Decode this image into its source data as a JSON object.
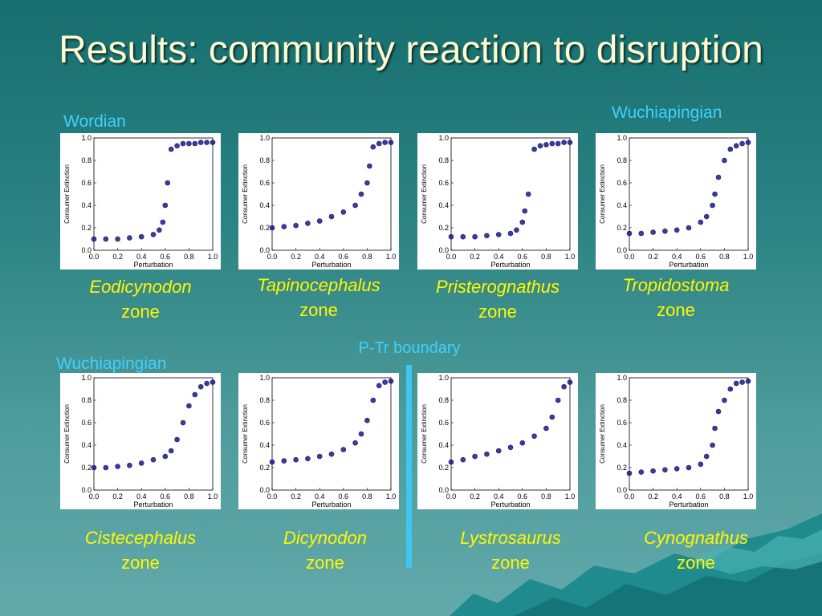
{
  "title": "Results: community reaction to disruption",
  "period_labels": {
    "top_left": "Wordian",
    "top_right": "Wuchiapingian",
    "bottom_left": "Wuchiapingian"
  },
  "boundary_label": "P-Tr boundary",
  "colors": {
    "background": "#2b8282",
    "title": "#fffbd0",
    "period_label": "#3fd0ff",
    "caption": "#fff700",
    "boundary_line": "#3fc6f2",
    "marker": "#1a1a80"
  },
  "captions": [
    {
      "genus": "Eodicynodon",
      "zone": "zone"
    },
    {
      "genus": "Tapinocephalus",
      "zone": "zone"
    },
    {
      "genus": "Pristerognathus",
      "zone": "zone"
    },
    {
      "genus": "Tropidostoma",
      "zone": "zone"
    },
    {
      "genus": "Cistecephalus",
      "zone": "zone"
    },
    {
      "genus": "Dicynodon",
      "zone": "zone"
    },
    {
      "genus": "Lystrosaurus",
      "zone": "zone"
    },
    {
      "genus": "Cynognathus",
      "zone": "zone"
    }
  ],
  "chart_data": [
    {
      "type": "scatter",
      "xlabel": "Perturbation",
      "ylabel": "Consumer Extinction",
      "xlim": [
        0,
        1
      ],
      "ylim": [
        0,
        1
      ],
      "x_ticks": [
        "0.0",
        "0.2",
        "0.4",
        "0.6",
        "0.8",
        "1.0"
      ],
      "y_ticks": [
        "0.0",
        "0.2",
        "0.4",
        "0.6",
        "0.8",
        "1.0"
      ],
      "x": [
        0.0,
        0.1,
        0.2,
        0.3,
        0.4,
        0.5,
        0.55,
        0.58,
        0.6,
        0.62,
        0.65,
        0.7,
        0.75,
        0.8,
        0.85,
        0.9,
        0.95,
        1.0
      ],
      "y": [
        0.1,
        0.1,
        0.1,
        0.11,
        0.12,
        0.14,
        0.18,
        0.25,
        0.4,
        0.6,
        0.9,
        0.93,
        0.95,
        0.95,
        0.95,
        0.96,
        0.96,
        0.96
      ]
    },
    {
      "type": "scatter",
      "xlabel": "Perturbation",
      "ylabel": "Consumer Extinction",
      "xlim": [
        0,
        1
      ],
      "ylim": [
        0,
        1
      ],
      "x_ticks": [
        "0.0",
        "0.2",
        "0.4",
        "0.6",
        "0.8",
        "1.0"
      ],
      "y_ticks": [
        "0.0",
        "0.2",
        "0.4",
        "0.6",
        "0.8",
        "1.0"
      ],
      "x": [
        0.0,
        0.1,
        0.2,
        0.3,
        0.4,
        0.5,
        0.6,
        0.7,
        0.75,
        0.8,
        0.82,
        0.85,
        0.9,
        0.95,
        1.0
      ],
      "y": [
        0.2,
        0.21,
        0.22,
        0.24,
        0.26,
        0.3,
        0.34,
        0.4,
        0.5,
        0.6,
        0.75,
        0.92,
        0.95,
        0.96,
        0.96
      ]
    },
    {
      "type": "scatter",
      "xlabel": "Perturbation",
      "ylabel": "Consumer Extinction",
      "xlim": [
        0,
        1
      ],
      "ylim": [
        0,
        1
      ],
      "x_ticks": [
        "0.0",
        "0.2",
        "0.4",
        "0.6",
        "0.8",
        "1.0"
      ],
      "y_ticks": [
        "0.0",
        "0.2",
        "0.4",
        "0.6",
        "0.8",
        "1.0"
      ],
      "x": [
        0.0,
        0.1,
        0.2,
        0.3,
        0.4,
        0.5,
        0.55,
        0.6,
        0.62,
        0.65,
        0.7,
        0.75,
        0.8,
        0.85,
        0.9,
        0.95,
        1.0
      ],
      "y": [
        0.12,
        0.12,
        0.12,
        0.13,
        0.14,
        0.15,
        0.18,
        0.25,
        0.35,
        0.5,
        0.9,
        0.93,
        0.94,
        0.95,
        0.95,
        0.96,
        0.96
      ]
    },
    {
      "type": "scatter",
      "xlabel": "Perturbation",
      "ylabel": "Consumer Extinction",
      "xlim": [
        0,
        1
      ],
      "ylim": [
        0,
        1
      ],
      "x_ticks": [
        "0.0",
        "0.2",
        "0.4",
        "0.6",
        "0.8",
        "1.0"
      ],
      "y_ticks": [
        "0.0",
        "0.2",
        "0.4",
        "0.6",
        "0.8",
        "1.0"
      ],
      "x": [
        0.0,
        0.1,
        0.2,
        0.3,
        0.4,
        0.5,
        0.6,
        0.65,
        0.7,
        0.72,
        0.75,
        0.8,
        0.85,
        0.9,
        0.95,
        1.0
      ],
      "y": [
        0.15,
        0.15,
        0.16,
        0.17,
        0.18,
        0.2,
        0.25,
        0.3,
        0.4,
        0.5,
        0.65,
        0.8,
        0.9,
        0.93,
        0.95,
        0.96
      ]
    },
    {
      "type": "scatter",
      "xlabel": "Perturbation",
      "ylabel": "Consumer Extinction",
      "xlim": [
        0,
        1
      ],
      "ylim": [
        0,
        1
      ],
      "x_ticks": [
        "0.0",
        "0.2",
        "0.4",
        "0.6",
        "0.8",
        "1.0"
      ],
      "y_ticks": [
        "0.0",
        "0.2",
        "0.4",
        "0.6",
        "0.8",
        "1.0"
      ],
      "x": [
        0.0,
        0.1,
        0.2,
        0.3,
        0.4,
        0.5,
        0.6,
        0.65,
        0.7,
        0.75,
        0.8,
        0.85,
        0.9,
        0.95,
        1.0
      ],
      "y": [
        0.2,
        0.2,
        0.21,
        0.22,
        0.24,
        0.27,
        0.3,
        0.35,
        0.45,
        0.6,
        0.75,
        0.85,
        0.92,
        0.95,
        0.96
      ]
    },
    {
      "type": "scatter",
      "xlabel": "Perturbation",
      "ylabel": "Consumer Extinction",
      "xlim": [
        0,
        1
      ],
      "ylim": [
        0,
        1
      ],
      "x_ticks": [
        "0.0",
        "0.2",
        "0.4",
        "0.6",
        "0.8",
        "1.0"
      ],
      "y_ticks": [
        "0.0",
        "0.2",
        "0.4",
        "0.6",
        "0.8",
        "1.0"
      ],
      "x": [
        0.0,
        0.1,
        0.2,
        0.3,
        0.4,
        0.5,
        0.6,
        0.7,
        0.75,
        0.8,
        0.85,
        0.9,
        0.95,
        1.0
      ],
      "y": [
        0.25,
        0.26,
        0.27,
        0.28,
        0.3,
        0.32,
        0.36,
        0.42,
        0.5,
        0.62,
        0.8,
        0.93,
        0.96,
        0.97
      ]
    },
    {
      "type": "scatter",
      "xlabel": "Perturbation",
      "ylabel": "Consumer Extinction",
      "xlim": [
        0,
        1
      ],
      "ylim": [
        0,
        1
      ],
      "x_ticks": [
        "0.0",
        "0.2",
        "0.4",
        "0.6",
        "0.8",
        "1.0"
      ],
      "y_ticks": [
        "0.0",
        "0.2",
        "0.4",
        "0.6",
        "0.8",
        "1.0"
      ],
      "x": [
        0.0,
        0.1,
        0.2,
        0.3,
        0.4,
        0.5,
        0.6,
        0.7,
        0.8,
        0.85,
        0.9,
        0.95,
        1.0
      ],
      "y": [
        0.25,
        0.27,
        0.3,
        0.32,
        0.35,
        0.38,
        0.42,
        0.48,
        0.55,
        0.65,
        0.8,
        0.92,
        0.96
      ]
    },
    {
      "type": "scatter",
      "xlabel": "Perturbation",
      "ylabel": "Consumer Extinction",
      "xlim": [
        0,
        1
      ],
      "ylim": [
        0,
        1
      ],
      "x_ticks": [
        "0.0",
        "0.2",
        "0.4",
        "0.6",
        "0.8",
        "1.0"
      ],
      "y_ticks": [
        "0.0",
        "0.2",
        "0.4",
        "0.6",
        "0.8",
        "1.0"
      ],
      "x": [
        0.0,
        0.1,
        0.2,
        0.3,
        0.4,
        0.5,
        0.6,
        0.65,
        0.7,
        0.72,
        0.75,
        0.8,
        0.85,
        0.9,
        0.95,
        1.0
      ],
      "y": [
        0.15,
        0.16,
        0.17,
        0.18,
        0.19,
        0.2,
        0.23,
        0.3,
        0.4,
        0.55,
        0.7,
        0.8,
        0.9,
        0.95,
        0.96,
        0.97
      ]
    }
  ]
}
